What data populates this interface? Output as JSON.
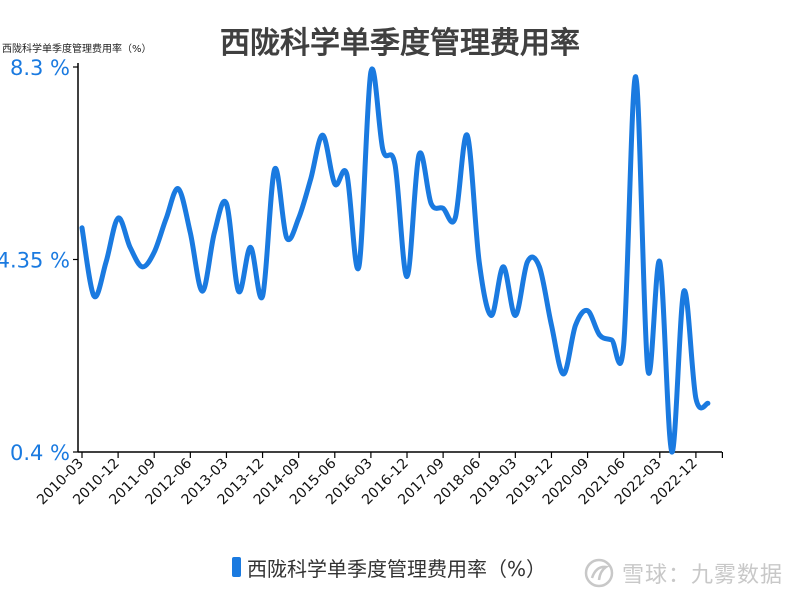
{
  "chart_data": {
    "type": "line",
    "title": "西陇科学单季度管理费用率",
    "unit_label": "西陇科学单季度管理费用率（%）",
    "series_name": "西陇科学单季度管理费用率（%）",
    "x_tick_labels": [
      "2010-03",
      "2010-12",
      "2011-09",
      "2012-06",
      "2013-03",
      "2013-12",
      "2014-09",
      "2015-06",
      "2016-03",
      "2016-12",
      "2017-09",
      "2018-06",
      "2019-03",
      "2019-12",
      "2020-09",
      "2021-06",
      "2022-03",
      "2022-12"
    ],
    "y_tick_labels": [
      "8.3 %",
      "4.35 %",
      "0.4 %"
    ],
    "y_ticks": [
      8.3,
      4.35,
      0.4
    ],
    "ylim": [
      0.4,
      8.3
    ],
    "grid": false,
    "legend_position": "bottom",
    "color": "#1a7ae0",
    "x": [
      "2010-03",
      "2010-06",
      "2010-09",
      "2010-12",
      "2011-03",
      "2011-06",
      "2011-09",
      "2011-12",
      "2012-03",
      "2012-06",
      "2012-09",
      "2012-12",
      "2013-03",
      "2013-06",
      "2013-09",
      "2013-12",
      "2014-03",
      "2014-06",
      "2014-09",
      "2014-12",
      "2015-03",
      "2015-06",
      "2015-09",
      "2015-12",
      "2016-03",
      "2016-06",
      "2016-09",
      "2016-12",
      "2017-03",
      "2017-06",
      "2017-09",
      "2017-12",
      "2018-03",
      "2018-06",
      "2018-09",
      "2018-12",
      "2019-03",
      "2019-06",
      "2019-09",
      "2019-12",
      "2020-03",
      "2020-06",
      "2020-09",
      "2020-12",
      "2021-03",
      "2021-06",
      "2021-09",
      "2021-12",
      "2022-03",
      "2022-06",
      "2022-09",
      "2022-12",
      "2023-03"
    ],
    "values": [
      5.0,
      3.6,
      4.3,
      5.2,
      4.6,
      4.2,
      4.5,
      5.2,
      5.8,
      4.9,
      3.7,
      4.9,
      5.5,
      3.7,
      4.6,
      3.6,
      6.2,
      4.8,
      5.2,
      6.0,
      6.9,
      5.9,
      6.1,
      4.2,
      8.2,
      6.6,
      6.3,
      4.0,
      6.5,
      5.5,
      5.4,
      5.2,
      6.9,
      4.3,
      3.2,
      4.2,
      3.2,
      4.3,
      4.2,
      3.0,
      2.0,
      3.0,
      3.3,
      2.8,
      2.7,
      2.6,
      8.1,
      2.1,
      4.3,
      0.4,
      3.7,
      1.5,
      1.4
    ]
  },
  "watermark": {
    "text": "雪球：九雾数据"
  }
}
